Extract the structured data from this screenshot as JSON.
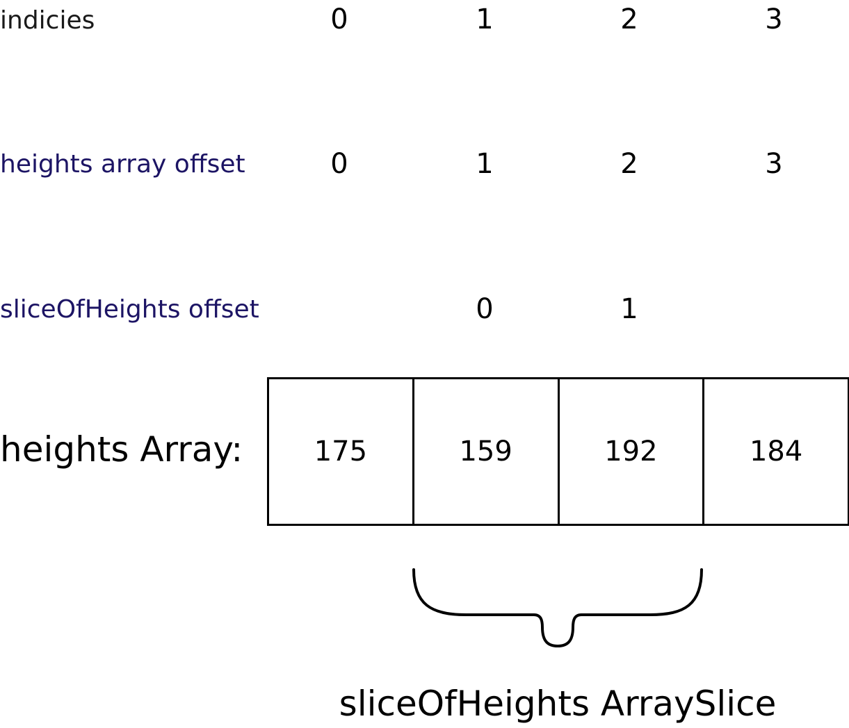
{
  "rows": {
    "indices": {
      "label": "indicies",
      "values": [
        "0",
        "1",
        "2",
        "3"
      ]
    },
    "heights_offset": {
      "label": "heights array offset",
      "values": [
        "0",
        "1",
        "2",
        "3"
      ]
    },
    "slice_offset": {
      "label": "sliceOfHeights offset",
      "values": [
        "0",
        "1"
      ]
    }
  },
  "array": {
    "label": "heights Array:",
    "cells": [
      "175",
      "159",
      "192",
      "184"
    ]
  },
  "slice": {
    "label": "sliceOfHeights ArraySlice"
  },
  "colors": {
    "offset_label": "#1c1464",
    "text": "#000000"
  }
}
